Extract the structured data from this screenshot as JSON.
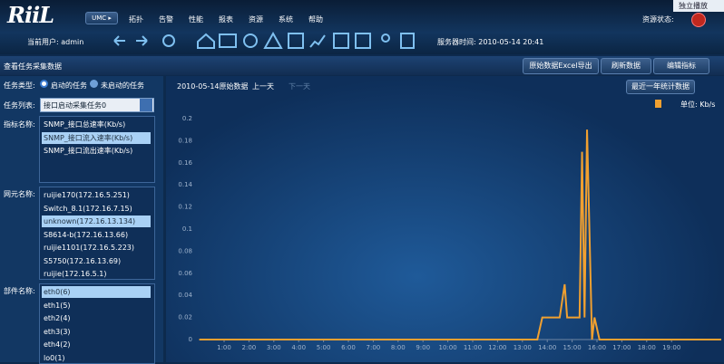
{
  "header": {
    "logo": "RiiL",
    "umc": "UMC ▸",
    "menu": [
      "拓扑",
      "告警",
      "性能",
      "报表",
      "资源",
      "系统",
      "帮助"
    ],
    "resource_status": "资源状态:",
    "popup": "独立播放",
    "current_user": "当前用户: admin",
    "server_time": "服务器时间: 2010-05-14 20:41"
  },
  "panel": {
    "title": "查看任务采集数据",
    "buttons": [
      "原始数据Excel导出",
      "刷新数据",
      "编辑指标"
    ]
  },
  "filters": {
    "task_type_label": "任务类型:",
    "task_types": [
      "启动的任务",
      "未启动的任务"
    ],
    "task_list_label": "任务列表:",
    "task_list_value": "接口启动采集任务0",
    "metric_label": "指标名称:",
    "metrics": [
      "SNMP_接口总速率(Kb/s)",
      "SNMP_接口流入速率(Kb/s)",
      "SNMP_接口流出速率(Kb/s)"
    ],
    "metric_selected": 1,
    "element_label": "网元名称:",
    "elements": [
      "ruijie170(172.16.5.251)",
      "Switch_8.1(172.16.7.15)",
      "unknown(172.16.13.134)",
      "S8614-b(172.16.13.66)",
      "ruijie1101(172.16.5.223)",
      "S5750(172.16.13.69)",
      "ruijie(172.16.5.1)"
    ],
    "element_selected": 2,
    "component_label": "部件名称:",
    "components": [
      "eth0(6)",
      "eth1(5)",
      "eth2(4)",
      "eth3(3)",
      "eth4(2)",
      "lo0(1)"
    ],
    "component_selected": 0
  },
  "chart_header": {
    "date": "2010-05-14原始数据",
    "prev": "上一天",
    "next": "下一天",
    "range_button": "最近一年统计数据",
    "unit": "单位: Kb/s"
  },
  "chart_data": {
    "type": "line",
    "x": [
      0,
      13.6,
      13.8,
      14.5,
      14.7,
      14.8,
      15.3,
      15.4,
      15.5,
      15.6,
      15.8,
      15.9,
      16.1,
      21
    ],
    "series": [
      {
        "color": "#f0a030",
        "values": [
          0,
          0,
          0.02,
          0.02,
          0.05,
          0.02,
          0.02,
          0.17,
          0.02,
          0.19,
          0,
          0.02,
          0,
          0
        ]
      }
    ],
    "xlim": [
      0,
      21
    ],
    "ylim": [
      0,
      0.2
    ],
    "yticks": [
      0,
      0.02,
      0.04,
      0.06,
      0.08,
      0.1,
      0.12,
      0.14,
      0.16,
      0.18,
      0.2
    ],
    "xticks": [
      {
        "value": 1,
        "label": "1:00"
      },
      {
        "value": 2,
        "label": "2:00"
      },
      {
        "value": 3,
        "label": "3:00"
      },
      {
        "value": 4,
        "label": "4:00"
      },
      {
        "value": 5,
        "label": "5:00"
      },
      {
        "value": 6,
        "label": "6:00"
      },
      {
        "value": 7,
        "label": "7:00"
      },
      {
        "value": 8,
        "label": "8:00"
      },
      {
        "value": 9,
        "label": "9:00"
      },
      {
        "value": 10,
        "label": "10:00"
      },
      {
        "value": 11,
        "label": "11:00"
      },
      {
        "value": 12,
        "label": "12:00"
      },
      {
        "value": 13,
        "label": "13:00"
      },
      {
        "value": 14,
        "label": "14:00"
      },
      {
        "value": 15,
        "label": "15:00"
      },
      {
        "value": 16,
        "label": "16:00"
      },
      {
        "value": 17,
        "label": "17:00"
      },
      {
        "value": 18,
        "label": "18:00"
      },
      {
        "value": 19,
        "label": "19:00"
      }
    ],
    "grid": false
  }
}
